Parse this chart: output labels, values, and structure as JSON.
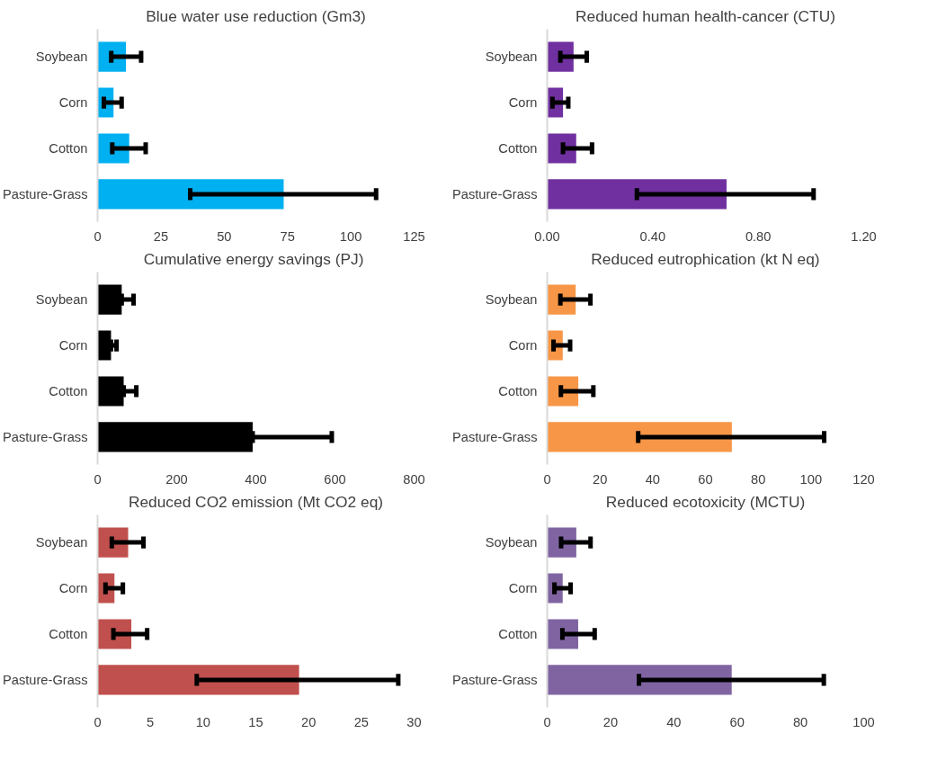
{
  "chart_data": [
    {
      "type": "bar",
      "orientation": "horizontal",
      "title": "Blue water use reduction (Gm3)",
      "categories": [
        "Soybean",
        "Corn",
        "Cotton",
        "Pasture-Grass"
      ],
      "values": [
        11.2,
        6.3,
        12.5,
        73.5
      ],
      "color": "#00b0f0",
      "errors": [
        [
          5.4,
          17.2
        ],
        [
          2.5,
          9.5
        ],
        [
          5.8,
          19
        ],
        [
          36.6,
          110
        ]
      ],
      "xlim": [
        0,
        125
      ],
      "xticks": [
        0,
        25,
        50,
        75,
        100,
        125
      ],
      "grid": false
    },
    {
      "type": "bar",
      "orientation": "horizontal",
      "title": "Reduced human health-cancer (CTU)",
      "categories": [
        "Soybean",
        "Corn",
        "Cotton",
        "Pasture-Grass"
      ],
      "values": [
        0.1,
        0.06,
        0.11,
        0.68
      ],
      "color": "#7030a0",
      "errors": [
        [
          0.05,
          0.15
        ],
        [
          0.02,
          0.08
        ],
        [
          0.06,
          0.17
        ],
        [
          0.34,
          1.01
        ]
      ],
      "xlim": [
        0,
        1.2
      ],
      "xticks": [
        {
          "value": 0,
          "label": "0.00"
        },
        {
          "value": 0.4,
          "label": "0.40"
        },
        {
          "value": 0.8,
          "label": "0.80"
        },
        {
          "value": 1.2,
          "label": "1.20"
        }
      ],
      "grid": false
    },
    {
      "type": "bar",
      "orientation": "horizontal",
      "title": "Cumulative energy savings  (PJ)",
      "categories": [
        "Soybean",
        "Corn",
        "Cotton",
        "Pasture-Grass"
      ],
      "values": [
        61,
        34,
        66,
        392
      ],
      "color": "#000000",
      "errors": [
        [
          61,
          91
        ],
        [
          34,
          48
        ],
        [
          66,
          98
        ],
        [
          392,
          592
        ]
      ],
      "xlim": [
        0,
        800
      ],
      "xticks": [
        0,
        200,
        400,
        600,
        800
      ],
      "grid": false
    },
    {
      "type": "bar",
      "orientation": "horizontal",
      "title": "Reduced eutrophication (kt N eq)",
      "categories": [
        "Soybean",
        "Corn",
        "Cotton",
        "Pasture-Grass"
      ],
      "values": [
        10.8,
        5.9,
        11.8,
        70
      ],
      "color": "#f79646",
      "errors": [
        [
          5,
          16.4
        ],
        [
          2.4,
          8.7
        ],
        [
          5.2,
          17.5
        ],
        [
          34.5,
          105
        ]
      ],
      "xlim": [
        0,
        120
      ],
      "xticks": [
        0,
        20,
        40,
        60,
        80,
        100,
        120
      ],
      "grid": false
    },
    {
      "type": "bar",
      "orientation": "horizontal",
      "title": "Reduced CO2 emission (Mt CO2 eq)",
      "categories": [
        "Soybean",
        "Corn",
        "Cotton",
        "Pasture-Grass"
      ],
      "values": [
        2.9,
        1.6,
        3.2,
        19.1
      ],
      "color": "#c0504d",
      "errors": [
        [
          1.35,
          4.35
        ],
        [
          0.75,
          2.4
        ],
        [
          1.5,
          4.7
        ],
        [
          9.4,
          28.5
        ]
      ],
      "xlim": [
        0,
        30
      ],
      "xticks": [
        0,
        5,
        10,
        15,
        20,
        25,
        30
      ],
      "grid": false
    },
    {
      "type": "bar",
      "orientation": "horizontal",
      "title": "Reduced ecotoxicity (MCTU)",
      "categories": [
        "Soybean",
        "Corn",
        "Cotton",
        "Pasture-Grass"
      ],
      "values": [
        9.2,
        4.9,
        9.8,
        58.3
      ],
      "color": "#8064a2",
      "errors": [
        [
          4.4,
          13.7
        ],
        [
          2.3,
          7.4
        ],
        [
          4.8,
          15
        ],
        [
          29,
          87.4
        ]
      ],
      "xlim": [
        0,
        100
      ],
      "xticks": [
        0,
        20,
        40,
        60,
        80,
        100
      ],
      "grid": false
    }
  ]
}
